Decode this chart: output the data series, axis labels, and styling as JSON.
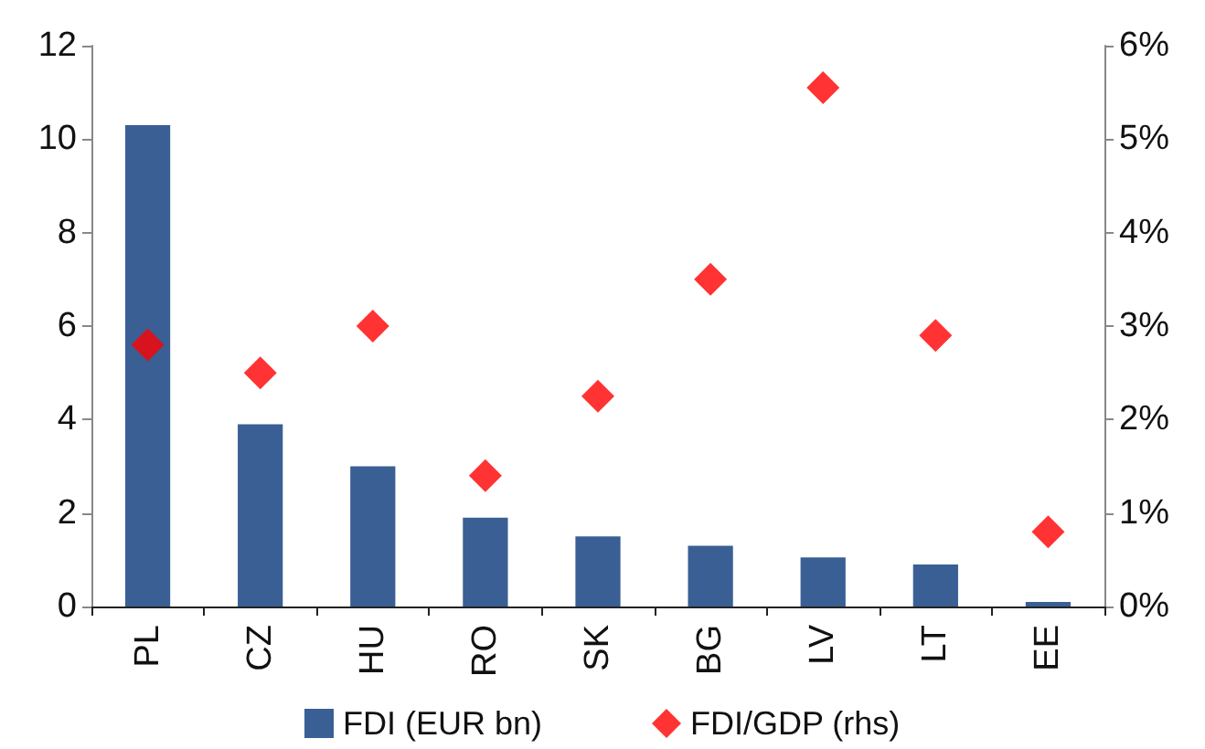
{
  "chart_data": {
    "type": "bar",
    "categories": [
      "PL",
      "CZ",
      "HU",
      "RO",
      "SK",
      "BG",
      "LV",
      "LT",
      "EE"
    ],
    "series": [
      {
        "name": "FDI (EUR bn)",
        "color": "#3a5f94",
        "values": [
          10.3,
          3.9,
          3.0,
          1.9,
          1.5,
          1.3,
          1.05,
          0.9,
          0.1
        ]
      },
      {
        "name": "FDI/GDP (rhs)",
        "type": "scatter",
        "axis": "y2",
        "color": "#ff0000",
        "values": [
          2.8,
          2.5,
          3.0,
          1.4,
          2.25,
          3.5,
          5.55,
          2.9,
          0.8
        ]
      }
    ],
    "ylim": [
      0,
      12
    ],
    "yticks": [
      0,
      2,
      4,
      6,
      8,
      10,
      12
    ],
    "y2lim": [
      0,
      6
    ],
    "y2ticks": [
      {
        "value": 0,
        "label": "0%"
      },
      {
        "value": 1,
        "label": "1%"
      },
      {
        "value": 2,
        "label": "2%"
      },
      {
        "value": 3,
        "label": "3%"
      },
      {
        "value": 4,
        "label": "4%"
      },
      {
        "value": 5,
        "label": "5%"
      },
      {
        "value": 6,
        "label": "6%"
      }
    ],
    "marker": "diamond",
    "grid": false,
    "legend": "bottom"
  }
}
